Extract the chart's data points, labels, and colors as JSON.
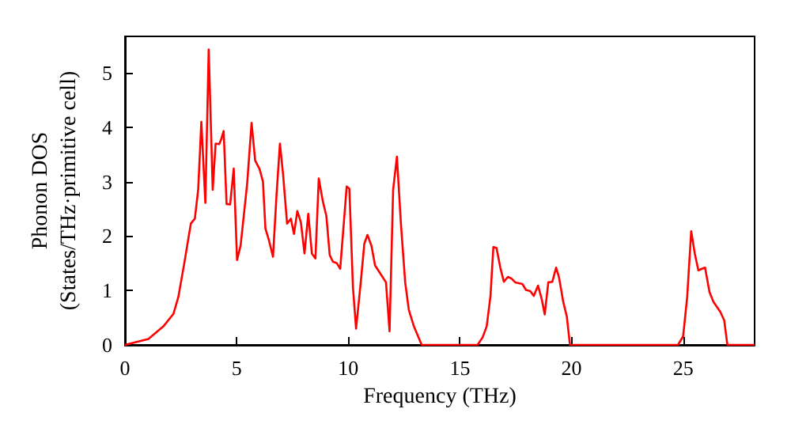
{
  "chart_data": {
    "type": "line",
    "xlabel": "Frequency (THz)",
    "ylabel": "Phonon DOS\n(States/THz·primitive cell)",
    "xlim": [
      0,
      28.2
    ],
    "ylim": [
      0,
      5.67
    ],
    "xticks": [
      0,
      5,
      10,
      15,
      20,
      25
    ],
    "yticks": [
      0,
      1,
      2,
      3,
      4,
      5
    ],
    "grid": false,
    "marker": "none",
    "line_style": "solid",
    "series": [
      {
        "color": "#ff0000",
        "x": [
          0,
          1.05,
          1.72,
          2.17,
          2.39,
          2.66,
          2.95,
          3.13,
          3.28,
          3.42,
          3.6,
          3.75,
          3.93,
          4.06,
          4.22,
          4.31,
          4.42,
          4.55,
          4.71,
          4.87,
          5.02,
          5.18,
          5.47,
          5.67,
          5.83,
          6.03,
          6.18,
          6.29,
          6.45,
          6.63,
          6.79,
          6.94,
          7.08,
          7.26,
          7.43,
          7.57,
          7.72,
          7.88,
          8.04,
          8.21,
          8.37,
          8.53,
          8.68,
          8.86,
          9.02,
          9.17,
          9.31,
          9.49,
          9.64,
          9.93,
          10.05,
          10.21,
          10.35,
          10.56,
          10.72,
          10.86,
          11.04,
          11.2,
          11.39,
          11.55,
          11.69,
          11.85,
          12.01,
          12.18,
          12.36,
          12.55,
          12.71,
          12.94,
          13.29,
          15.79,
          16.02,
          16.2,
          16.37,
          16.5,
          16.64,
          16.81,
          16.97,
          17.15,
          17.31,
          17.48,
          17.8,
          17.96,
          18.15,
          18.31,
          18.5,
          18.66,
          18.8,
          18.96,
          19.14,
          19.31,
          19.44,
          19.63,
          19.79,
          19.93,
          24.77,
          25.0,
          25.18,
          25.36,
          25.52,
          25.68,
          25.84,
          25.98,
          26.18,
          26.36,
          26.66,
          26.84,
          26.98,
          28.2
        ],
        "values": [
          0,
          0.11,
          0.34,
          0.57,
          0.88,
          1.51,
          2.23,
          2.32,
          2.86,
          4.1,
          2.61,
          5.43,
          2.85,
          3.7,
          3.69,
          3.78,
          3.93,
          2.59,
          2.58,
          3.24,
          1.56,
          1.83,
          2.95,
          4.08,
          3.39,
          3.23,
          3.0,
          2.14,
          1.92,
          1.62,
          2.77,
          3.7,
          3.14,
          2.23,
          2.32,
          2.04,
          2.46,
          2.25,
          1.68,
          2.41,
          1.68,
          1.59,
          3.06,
          2.64,
          2.37,
          1.65,
          1.53,
          1.5,
          1.4,
          2.91,
          2.87,
          1.06,
          0.3,
          1.15,
          1.86,
          2.02,
          1.82,
          1.46,
          1.34,
          1.24,
          1.15,
          0.25,
          2.85,
          3.46,
          2.22,
          1.15,
          0.65,
          0.34,
          0,
          0,
          0.14,
          0.34,
          0.9,
          1.8,
          1.78,
          1.42,
          1.16,
          1.25,
          1.22,
          1.15,
          1.12,
          1.01,
          0.99,
          0.9,
          1.09,
          0.85,
          0.56,
          1.15,
          1.16,
          1.42,
          1.24,
          0.79,
          0.52,
          0,
          0,
          0.16,
          0.88,
          2.09,
          1.68,
          1.37,
          1.4,
          1.42,
          0.97,
          0.79,
          0.61,
          0.45,
          0,
          0
        ]
      }
    ]
  }
}
